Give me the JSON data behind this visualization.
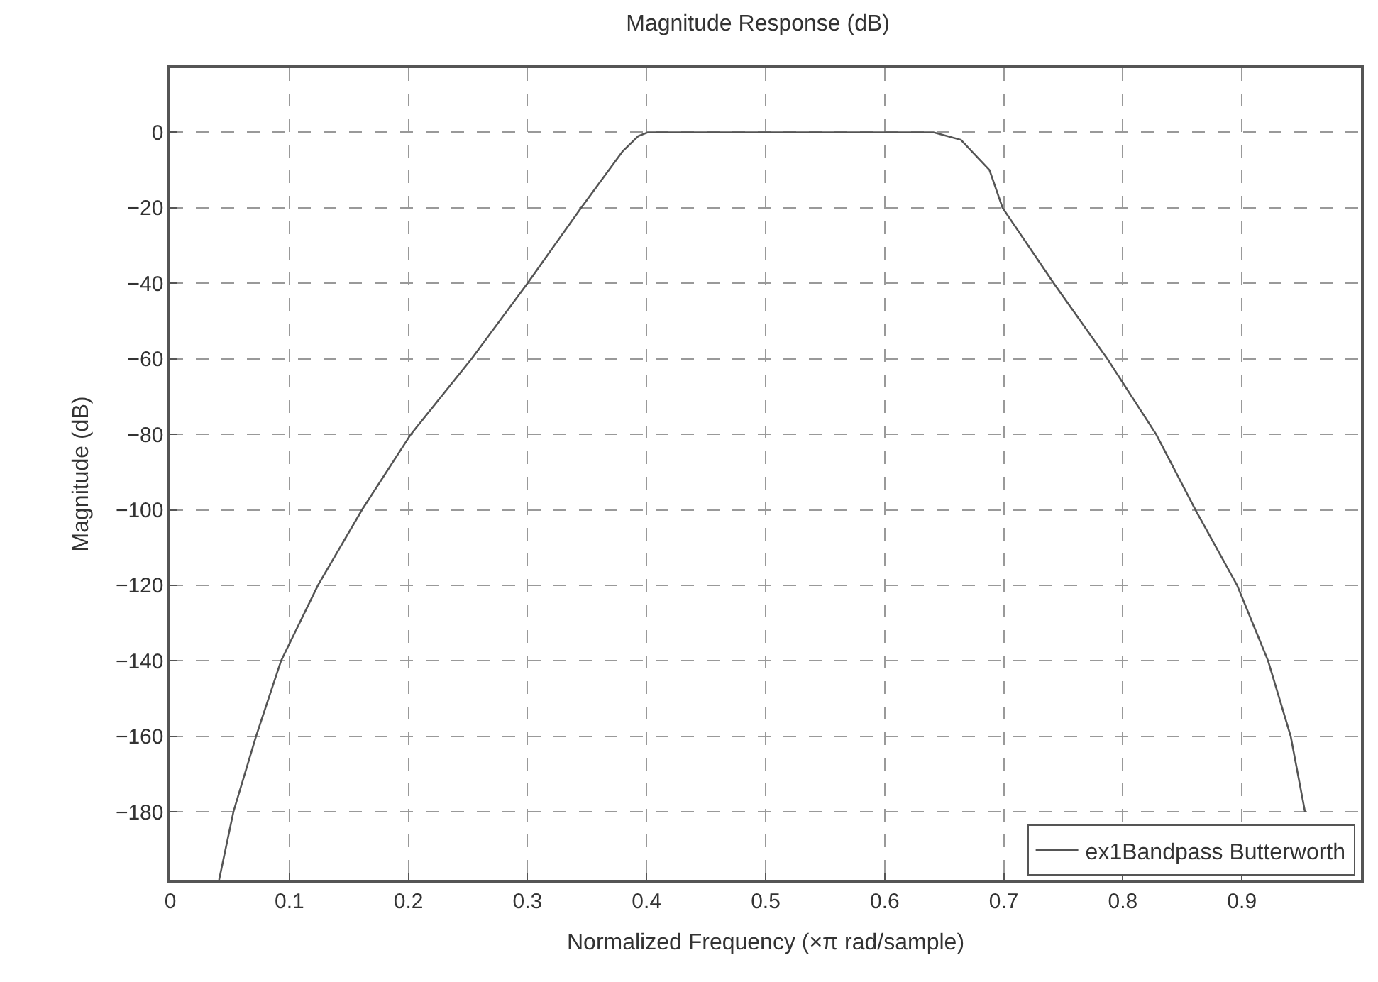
{
  "chart_data": {
    "type": "line",
    "title": "Magnitude Response (dB)",
    "xlabel": "Normalized Frequency (×π rad/sample)",
    "ylabel": "Magnitude (dB)",
    "xlim": [
      0,
      1
    ],
    "xticks": [
      0,
      0.1,
      0.2,
      0.3,
      0.4,
      0.5,
      0.6,
      0.7,
      0.8,
      0.9
    ],
    "ylim": [
      -198,
      17
    ],
    "yticks": [
      0,
      -20,
      -40,
      -60,
      -80,
      -100,
      -120,
      -140,
      -160,
      -180
    ],
    "grid": true,
    "legend": "bottom right",
    "line_style": "solid",
    "marker": "none",
    "series": [
      {
        "name": "ex1Bandpass Butterworth",
        "color": "#555555",
        "x": [
          0.041,
          0.053,
          0.072,
          0.093,
          0.124,
          0.161,
          0.202,
          0.253,
          0.3,
          0.345,
          0.38,
          0.393,
          0.401,
          0.5,
          0.6,
          0.641,
          0.664,
          0.688,
          0.699,
          0.742,
          0.787,
          0.828,
          0.861,
          0.896,
          0.922,
          0.941,
          0.953
        ],
        "values": [
          -198,
          -180,
          -160,
          -140,
          -120,
          -100,
          -80,
          -60,
          -40,
          -20,
          -5,
          -1,
          0,
          0,
          0,
          0,
          -2,
          -10,
          -20,
          -40,
          -60,
          -80,
          -100,
          -120,
          -140,
          -160,
          -180
        ]
      }
    ]
  }
}
